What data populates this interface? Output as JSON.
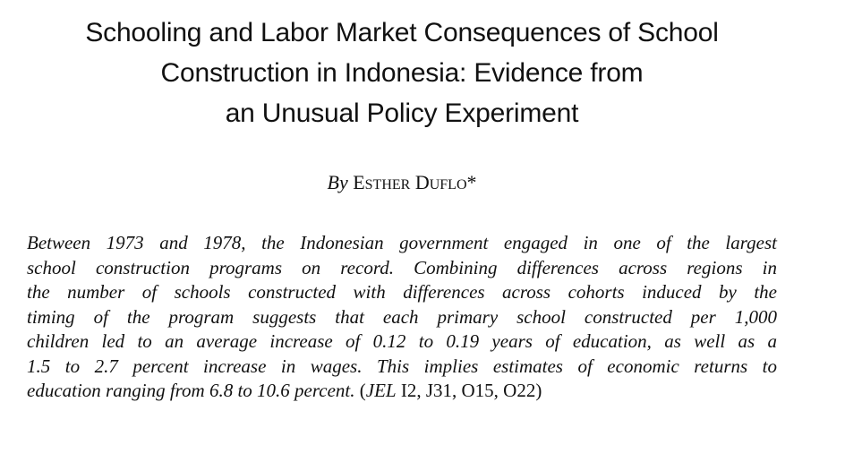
{
  "paper": {
    "title_lines": [
      "Schooling and Labor Market Consequences of School",
      "Construction in Indonesia: Evidence from",
      "an Unusual Policy Experiment"
    ],
    "byline": {
      "by": "By",
      "author_first_initial": "E",
      "author_first_rest": "STHER",
      "author_last_initial": "D",
      "author_last_rest": "UFLO",
      "footnote_mark": "*"
    },
    "abstract_lines": [
      "Between 1973 and 1978, the Indonesian government engaged in one of the largest",
      "school construction programs on record. Combining differences across regions in",
      "the number of schools constructed with differences across cohorts induced by the",
      "timing of the program suggests that each primary school constructed per 1,000",
      "children led to an average increase of 0.12 to 0.19 years of education, as well as a",
      "1.5 to 2.7 percent increase in wages. This implies estimates of economic returns to"
    ],
    "abstract_last_line": {
      "text": "education ranging from 6.8 to 10.6 percent.",
      "open_paren": " (",
      "jel_label": "JEL",
      "jel_codes": " I2, J31, O15, O22)"
    }
  }
}
